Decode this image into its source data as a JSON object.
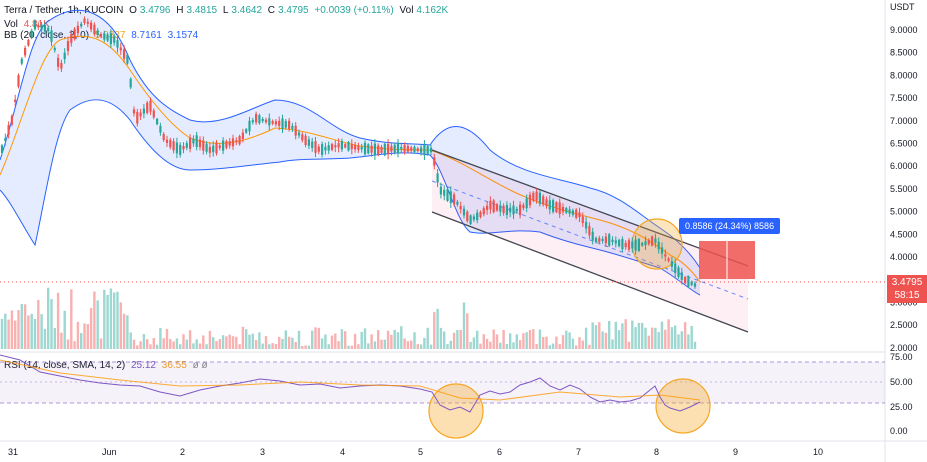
{
  "header": {
    "symbol": "Terra / Tether, 1h, KUCOIN",
    "ohlc": {
      "o_label": "O",
      "o": "3.4796",
      "h_label": "H",
      "h": "3.4815",
      "l_label": "L",
      "l": "3.4642",
      "c_label": "C",
      "c": "3.4795",
      "change": "+0.0039 (+0.11%)"
    },
    "vol_label": "Vol",
    "vol_value": "4.162K",
    "vol_row_label": "Vol",
    "vol_row_value": "4.81K",
    "bb_label": "BB (20, close, 2, 0)",
    "bb_basis": "5.9337",
    "bb_upper": "8.7161",
    "bb_lower": "3.1574",
    "rsi_label": "RSI (14, close, SMA, 14, 2)",
    "rsi_value": "25.12",
    "rsi_sma": "36.55",
    "rsi_extra": "ø ø"
  },
  "axis": {
    "currency": "USDT",
    "price_ticks": [
      "9.0000",
      "8.5000",
      "8.0000",
      "7.5000",
      "7.0000",
      "6.5000",
      "6.0000",
      "5.5000",
      "5.0000",
      "4.5000",
      "4.0000",
      "3.5000",
      "3.0000",
      "2.5000",
      "2.0000"
    ],
    "rsi_ticks": [
      "75.00",
      "50.00",
      "25.00",
      "0.00"
    ],
    "time_labels": [
      "31",
      "Jun",
      "2",
      "3",
      "4",
      "5",
      "6",
      "7",
      "8",
      "9",
      "10"
    ]
  },
  "price_tag": {
    "price": "3.4795",
    "countdown": "58:15"
  },
  "measure": {
    "label": "0.8586 (24.34%) 8586"
  },
  "colors": {
    "up": "#26a69a",
    "down": "#ef5350",
    "bb_band": "#2962ff",
    "bb_basis": "#ff9800",
    "rsi": "#7e57c2",
    "channel": "#e91e63"
  }
}
